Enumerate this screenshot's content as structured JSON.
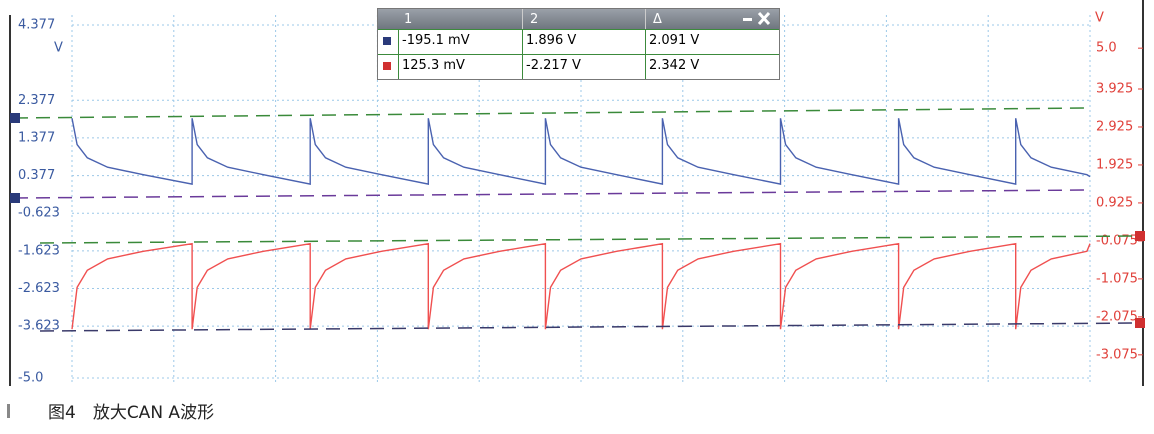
{
  "chart_data": {
    "type": "line",
    "ylabel": "V",
    "y2label": "V",
    "xlim": [
      0,
      10
    ],
    "x": [
      0,
      0.05,
      0.15,
      0.35,
      0.7,
      1.18,
      1.18,
      1.23,
      1.33,
      1.53,
      1.88,
      2.34,
      2.34,
      2.39,
      2.49,
      2.69,
      3.04,
      3.5,
      3.5,
      3.55,
      3.65,
      3.85,
      4.2,
      4.65,
      4.65,
      4.7,
      4.8,
      5.0,
      5.35,
      5.8,
      5.8,
      5.85,
      5.95,
      6.15,
      6.5,
      6.96,
      6.96,
      7.01,
      7.11,
      7.31,
      7.66,
      8.12,
      8.12,
      8.17,
      8.27,
      8.47,
      8.82,
      9.27,
      9.27,
      9.32,
      9.42,
      9.62,
      9.97,
      10
    ],
    "series": [
      {
        "color": "#4a62b0",
        "axis": "y",
        "values": [
          1.9,
          1.2,
          0.85,
          0.6,
          0.4,
          0.15,
          1.9,
          1.2,
          0.85,
          0.6,
          0.4,
          0.15,
          1.9,
          1.2,
          0.85,
          0.6,
          0.4,
          0.15,
          1.9,
          1.2,
          0.85,
          0.6,
          0.4,
          0.15,
          1.9,
          1.2,
          0.85,
          0.6,
          0.4,
          0.15,
          1.9,
          1.2,
          0.85,
          0.6,
          0.4,
          0.15,
          1.9,
          1.2,
          0.85,
          0.6,
          0.4,
          0.15,
          1.9,
          1.2,
          0.85,
          0.6,
          0.4,
          0.15,
          1.9,
          1.2,
          0.85,
          0.6,
          0.4,
          0.35
        ]
      },
      {
        "color": "#f05050",
        "axis": "y2",
        "values": [
          -2.4,
          -1.3,
          -0.85,
          -0.55,
          -0.35,
          -0.15,
          -2.4,
          -1.3,
          -0.85,
          -0.55,
          -0.35,
          -0.15,
          -2.4,
          -1.3,
          -0.85,
          -0.55,
          -0.35,
          -0.15,
          -2.4,
          -1.3,
          -0.85,
          -0.55,
          -0.35,
          -0.15,
          -2.4,
          -1.3,
          -0.85,
          -0.55,
          -0.35,
          -0.15,
          -2.4,
          -1.3,
          -0.85,
          -0.55,
          -0.35,
          -0.15,
          -2.4,
          -1.3,
          -0.85,
          -0.55,
          -0.35,
          -0.15,
          -2.4,
          -1.3,
          -0.85,
          -0.55,
          -0.35,
          -0.15,
          -2.4,
          -1.3,
          -0.85,
          -0.55,
          -0.35,
          -0.15
        ]
      }
    ],
    "ylim": [
      -5,
      4.377
    ],
    "yticks": [
      4.377,
      2.377,
      1.377,
      0.377,
      -0.623,
      -1.623,
      -2.623,
      -3.623,
      {
        "value": -5,
        "label": "-5.0"
      }
    ],
    "y2lim": [
      -3.685,
      5.61
    ],
    "y2ticks": [
      {
        "value": 5,
        "label": "5.0"
      },
      3.925,
      2.925,
      1.925,
      0.925,
      -0.075,
      -1.075,
      -2.075,
      -3.075
    ],
    "grid": true
  },
  "measurement_panel": {
    "headers": [
      "1",
      "2",
      "Δ"
    ],
    "rows": [
      [
        "-195.1 mV",
        "1.896 V",
        "2.091 V"
      ],
      [
        "125.3 mV",
        "-2.217 V",
        "2.342 V"
      ]
    ]
  },
  "caption": "图4　放大CAN A波形"
}
